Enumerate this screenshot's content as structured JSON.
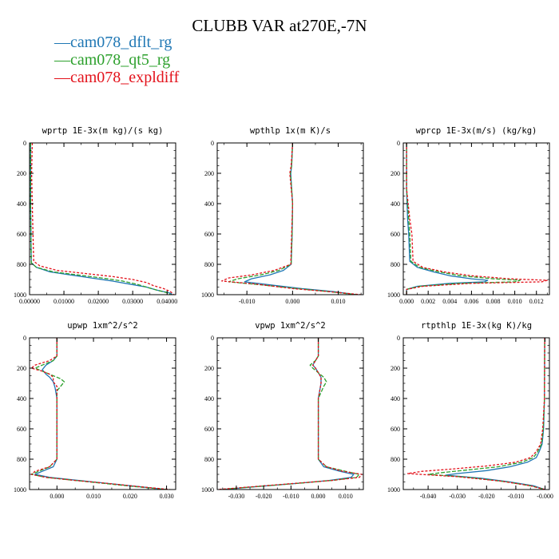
{
  "title": "CLUBB VAR at270E,-7N",
  "legend": [
    {
      "marker": "—",
      "label": "cam078_dflt_rg",
      "color": "#1f77b4"
    },
    {
      "marker": "—",
      "label": "cam078_qt5_rg",
      "color": "#2ca02c"
    },
    {
      "marker": "—",
      "label": "cam078_expldiff",
      "color": "#e3121b"
    }
  ],
  "chart_data": [
    {
      "type": "line",
      "title": "wprtp  1E-3x(m kg)/(s kg)",
      "xlim": [
        0.0,
        0.0425
      ],
      "ylim": [
        0,
        1000
      ],
      "y_inverted": true,
      "xticks": [
        0.0,
        0.01,
        0.02,
        0.03,
        0.04
      ],
      "xtick_labels": [
        "0.00000",
        "0.01000",
        "0.02000",
        "0.03000",
        "0.04000"
      ],
      "yticks": [
        0,
        200,
        400,
        600,
        800,
        1000
      ],
      "ytick_labels": [
        "0",
        "200",
        "400",
        "600",
        "800",
        "1000"
      ],
      "series": [
        {
          "name": "cam078_dflt_rg",
          "y": [
            0,
            200,
            400,
            600,
            790,
            820,
            850,
            870,
            890,
            910,
            930,
            950,
            970,
            990,
            1000
          ],
          "x": [
            0.0003,
            0.0003,
            0.0003,
            0.0004,
            0.0005,
            0.002,
            0.006,
            0.012,
            0.018,
            0.024,
            0.029,
            0.034,
            0.037,
            0.041,
            0.0415
          ]
        },
        {
          "name": "cam078_qt5_rg",
          "y": [
            0,
            200,
            400,
            600,
            790,
            820,
            850,
            870,
            890,
            910,
            930,
            950,
            970,
            990,
            1000
          ],
          "x": [
            0.0003,
            0.0003,
            0.0003,
            0.0004,
            0.0005,
            0.002,
            0.007,
            0.014,
            0.021,
            0.027,
            0.031,
            0.034,
            0.037,
            0.0405,
            0.041
          ]
        },
        {
          "name": "cam078_expldiff",
          "y": [
            0,
            200,
            400,
            600,
            780,
            810,
            840,
            860,
            880,
            900,
            920,
            940,
            960,
            980,
            1000
          ],
          "x": [
            0.0008,
            0.0006,
            0.0008,
            0.001,
            0.0012,
            0.003,
            0.008,
            0.016,
            0.024,
            0.03,
            0.034,
            0.036,
            0.039,
            0.041,
            0.042
          ]
        }
      ]
    },
    {
      "type": "line",
      "title": "wpthlp  1x(m K)/s",
      "xlim": [
        -0.0165,
        0.0155
      ],
      "ylim": [
        0,
        1000
      ],
      "y_inverted": true,
      "xticks": [
        -0.01,
        0.0,
        0.01
      ],
      "xtick_labels": [
        "-0.010",
        "0.000",
        "0.010"
      ],
      "yticks": [
        0,
        200,
        400,
        600,
        800,
        1000
      ],
      "ytick_labels": [
        "0",
        "200",
        "400",
        "600",
        "800",
        "1000"
      ],
      "series": [
        {
          "name": "cam078_dflt_rg",
          "y": [
            0,
            150,
            200,
            300,
            400,
            600,
            800,
            840,
            870,
            895,
            915,
            935,
            960,
            980,
            1000
          ],
          "x": [
            0.0,
            -0.0002,
            -0.0004,
            -0.0002,
            0.0,
            -0.0001,
            -0.0003,
            -0.002,
            -0.005,
            -0.009,
            -0.0105,
            -0.005,
            0.002,
            0.009,
            0.014
          ]
        },
        {
          "name": "cam078_qt5_rg",
          "y": [
            0,
            150,
            200,
            300,
            400,
            600,
            800,
            840,
            870,
            895,
            915,
            935,
            960,
            980,
            1000
          ],
          "x": [
            0.0,
            -0.0002,
            -0.0005,
            -0.0002,
            0.0,
            -0.0001,
            -0.0003,
            -0.003,
            -0.007,
            -0.012,
            -0.014,
            -0.007,
            0.001,
            0.008,
            0.014
          ]
        },
        {
          "name": "cam078_expldiff",
          "y": [
            0,
            150,
            200,
            300,
            400,
            600,
            800,
            840,
            870,
            890,
            910,
            930,
            960,
            980,
            1000
          ],
          "x": [
            0.0,
            -0.0003,
            -0.0006,
            -0.0003,
            0.0,
            -0.0002,
            -0.0004,
            -0.004,
            -0.009,
            -0.014,
            -0.0155,
            -0.008,
            0.0,
            0.008,
            0.015
          ]
        }
      ]
    },
    {
      "type": "line",
      "title": "wprcp  1E-3x(m/s) (kg/kg)",
      "xlim": [
        -0.0003,
        0.0132
      ],
      "ylim": [
        0,
        1000
      ],
      "y_inverted": true,
      "xticks": [
        0.0,
        0.002,
        0.004,
        0.006,
        0.008,
        0.01,
        0.012
      ],
      "xtick_labels": [
        "0.000",
        "0.002",
        "0.004",
        "0.006",
        "0.008",
        "0.010",
        "0.012"
      ],
      "yticks": [
        0,
        200,
        400,
        600,
        800,
        1000
      ],
      "ytick_labels": [
        "0",
        "200",
        "400",
        "600",
        "800",
        "1000"
      ],
      "series": [
        {
          "name": "cam078_dflt_rg",
          "y": [
            0,
            300,
            500,
            600,
            780,
            820,
            850,
            875,
            895,
            905,
            915,
            925,
            945,
            965,
            1000
          ],
          "x": [
            0.0,
            0.0,
            0.0001,
            0.0002,
            0.0003,
            0.001,
            0.0025,
            0.004,
            0.006,
            0.0075,
            0.0072,
            0.004,
            0.001,
            0.0,
            0.0
          ]
        },
        {
          "name": "cam078_qt5_rg",
          "y": [
            0,
            300,
            500,
            600,
            780,
            820,
            850,
            875,
            895,
            905,
            915,
            925,
            945,
            965,
            1000
          ],
          "x": [
            0.0,
            0.0,
            0.0002,
            0.0003,
            0.0004,
            0.0012,
            0.003,
            0.005,
            0.008,
            0.0105,
            0.01,
            0.005,
            0.0012,
            0.0,
            0.0
          ]
        },
        {
          "name": "cam078_expldiff",
          "y": [
            0,
            300,
            500,
            600,
            780,
            820,
            850,
            875,
            895,
            905,
            915,
            925,
            945,
            965,
            1000
          ],
          "x": [
            0.0,
            0.0,
            0.0003,
            0.0005,
            0.0006,
            0.0015,
            0.0035,
            0.006,
            0.0095,
            0.013,
            0.0125,
            0.006,
            0.0015,
            0.0,
            0.0
          ]
        }
      ]
    },
    {
      "type": "line",
      "title": "upwp  1xm^2/s^2",
      "xlim": [
        -0.0075,
        0.0325
      ],
      "ylim": [
        0,
        1000
      ],
      "y_inverted": true,
      "xticks": [
        0.0,
        0.01,
        0.02,
        0.03
      ],
      "xtick_labels": [
        "0.000",
        "0.010",
        "0.020",
        "0.030"
      ],
      "yticks": [
        0,
        200,
        400,
        600,
        800,
        1000
      ],
      "ytick_labels": [
        "0",
        "200",
        "400",
        "600",
        "800",
        "1000"
      ],
      "series": [
        {
          "name": "cam078_dflt_rg",
          "y": [
            0,
            120,
            150,
            180,
            210,
            240,
            260,
            290,
            330,
            400,
            600,
            800,
            850,
            880,
            900,
            920,
            940,
            960,
            980,
            1000
          ],
          "x": [
            0.0,
            0.0,
            -0.001,
            -0.003,
            -0.004,
            -0.003,
            -0.002,
            -0.001,
            -0.0005,
            0.0,
            0.0,
            0.0,
            -0.001,
            -0.004,
            -0.006,
            -0.002,
            0.006,
            0.014,
            0.022,
            0.03
          ]
        },
        {
          "name": "cam078_qt5_rg",
          "y": [
            0,
            120,
            150,
            180,
            200,
            220,
            250,
            270,
            290,
            320,
            350,
            400,
            600,
            800,
            850,
            880,
            900,
            920,
            940,
            960,
            980,
            1000
          ],
          "x": [
            0.0,
            0.0,
            -0.001,
            -0.004,
            -0.006,
            -0.004,
            -0.001,
            0.001,
            0.002,
            0.001,
            0.0,
            0.0,
            0.0,
            0.0,
            -0.002,
            -0.005,
            -0.007,
            -0.003,
            0.005,
            0.013,
            0.021,
            0.03
          ]
        },
        {
          "name": "cam078_expldiff",
          "y": [
            0,
            120,
            150,
            180,
            200,
            220,
            240,
            260,
            290,
            320,
            400,
            600,
            800,
            850,
            880,
            900,
            920,
            940,
            960,
            980,
            1000
          ],
          "x": [
            0.0,
            0.0,
            -0.002,
            -0.006,
            -0.007,
            -0.004,
            -0.002,
            -0.001,
            -0.001,
            0.0,
            0.0,
            0.0,
            0.0,
            -0.002,
            -0.006,
            -0.007,
            -0.003,
            0.005,
            0.014,
            0.022,
            0.031
          ]
        }
      ]
    },
    {
      "type": "line",
      "title": "vpwp  1xm^2/s^2",
      "xlim": [
        -0.037,
        0.0165
      ],
      "ylim": [
        0,
        1000
      ],
      "y_inverted": true,
      "xticks": [
        -0.03,
        -0.02,
        -0.01,
        0.0,
        0.01
      ],
      "xtick_labels": [
        "-0.030",
        "-0.020",
        "-0.010",
        "0.000",
        "0.010"
      ],
      "yticks": [
        0,
        200,
        400,
        600,
        800,
        1000
      ],
      "ytick_labels": [
        "0",
        "200",
        "400",
        "600",
        "800",
        "1000"
      ],
      "series": [
        {
          "name": "cam078_dflt_rg",
          "y": [
            0,
            120,
            150,
            180,
            200,
            230,
            260,
            300,
            400,
            600,
            800,
            850,
            880,
            900,
            920,
            940,
            960,
            980,
            1000
          ],
          "x": [
            0.0,
            0.0,
            -0.001,
            -0.002,
            -0.001,
            0.0,
            0.001,
            0.001,
            0.0,
            0.0,
            0.0,
            0.002,
            0.008,
            0.013,
            0.012,
            0.004,
            -0.008,
            -0.022,
            -0.035
          ]
        },
        {
          "name": "cam078_qt5_rg",
          "y": [
            0,
            120,
            150,
            180,
            200,
            230,
            260,
            290,
            320,
            400,
            600,
            800,
            850,
            880,
            900,
            920,
            940,
            960,
            980,
            1000
          ],
          "x": [
            0.0,
            0.0,
            -0.001,
            -0.003,
            -0.002,
            0.0,
            0.002,
            0.003,
            0.002,
            0.0,
            0.0,
            0.0,
            0.003,
            0.01,
            0.015,
            0.014,
            0.005,
            -0.008,
            -0.022,
            -0.036
          ]
        },
        {
          "name": "cam078_expldiff",
          "y": [
            0,
            120,
            150,
            180,
            200,
            230,
            260,
            300,
            400,
            600,
            800,
            850,
            880,
            900,
            920,
            940,
            960,
            980,
            1000
          ],
          "x": [
            0.0,
            0.0,
            -0.001,
            -0.002,
            -0.001,
            0.0,
            0.001,
            0.001,
            0.0,
            0.0,
            0.0,
            0.003,
            0.009,
            0.016,
            0.015,
            0.005,
            -0.009,
            -0.023,
            -0.037
          ]
        }
      ]
    },
    {
      "type": "line",
      "title": "rtpthlp  1E-3x(kg K)/kg",
      "xlim": [
        -0.0485,
        0.0015
      ],
      "ylim": [
        0,
        1000
      ],
      "y_inverted": true,
      "xticks": [
        -0.04,
        -0.03,
        -0.02,
        -0.01,
        0.0
      ],
      "xtick_labels": [
        "-0.040",
        "-0.030",
        "-0.020",
        "-0.010",
        "-0.000"
      ],
      "yticks": [
        0,
        200,
        400,
        600,
        800,
        1000
      ],
      "ytick_labels": [
        "0",
        "200",
        "400",
        "600",
        "800",
        "1000"
      ],
      "series": [
        {
          "name": "cam078_dflt_rg",
          "y": [
            0,
            400,
            600,
            700,
            750,
            790,
            820,
            850,
            875,
            895,
            905,
            925,
            950,
            975,
            1000
          ],
          "x": [
            -0.0001,
            -0.0002,
            -0.0005,
            -0.001,
            -0.002,
            -0.003,
            -0.006,
            -0.012,
            -0.02,
            -0.03,
            -0.034,
            -0.022,
            -0.012,
            -0.004,
            0.0
          ]
        },
        {
          "name": "cam078_qt5_rg",
          "y": [
            0,
            400,
            600,
            700,
            750,
            790,
            820,
            850,
            870,
            890,
            900,
            920,
            950,
            975,
            1000
          ],
          "x": [
            -0.0001,
            -0.0002,
            -0.0006,
            -0.0012,
            -0.0025,
            -0.004,
            -0.008,
            -0.016,
            -0.026,
            -0.036,
            -0.04,
            -0.026,
            -0.013,
            -0.005,
            0.0
          ]
        },
        {
          "name": "cam078_expldiff",
          "y": [
            0,
            400,
            600,
            700,
            750,
            790,
            820,
            845,
            865,
            880,
            895,
            915,
            945,
            975,
            1000
          ],
          "x": [
            -0.0001,
            -0.0002,
            -0.0008,
            -0.0015,
            -0.003,
            -0.005,
            -0.01,
            -0.02,
            -0.032,
            -0.042,
            -0.047,
            -0.03,
            -0.015,
            -0.005,
            0.0
          ]
        }
      ]
    }
  ]
}
